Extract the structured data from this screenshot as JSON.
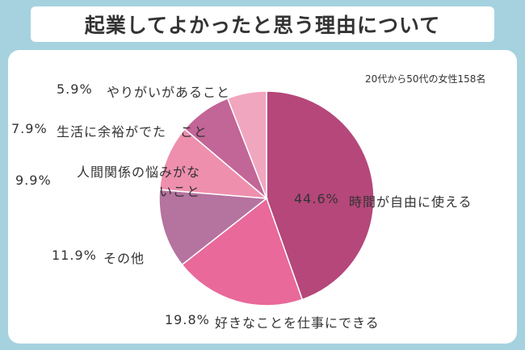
{
  "chart_data": {
    "type": "pie",
    "title": "起業してよかったと思う理由について",
    "subtitle": "20代から50代の女性158名",
    "categories": [
      "時間が自由に使える",
      "好きなことを仕事にできる",
      "その他",
      "人間関係の悩みがないこと",
      "生活に余裕がでた　こと",
      "やりがいがあること"
    ],
    "values": [
      44.6,
      19.8,
      11.9,
      9.9,
      7.9,
      5.9
    ],
    "value_labels": [
      "44.6%",
      "19.8%",
      "11.9%",
      "9.9%",
      "7.9%",
      "5.9%"
    ],
    "colors": [
      "#b5477a",
      "#e8699a",
      "#b5739f",
      "#ee8fae",
      "#c26597",
      "#f0a6bf"
    ]
  }
}
